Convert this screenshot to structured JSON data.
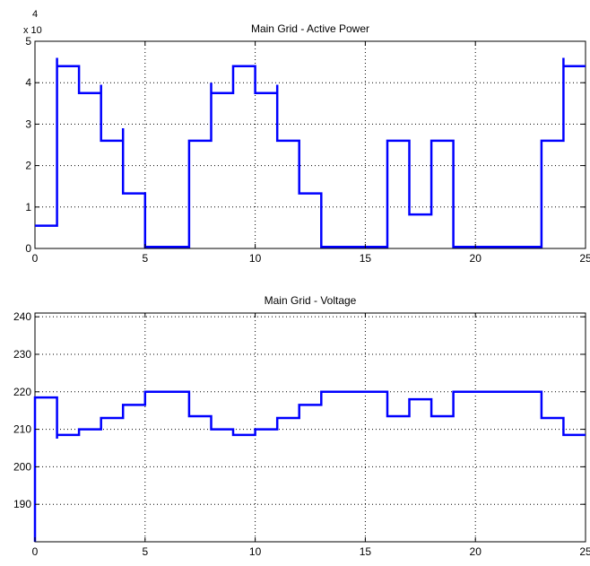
{
  "chart_data": [
    {
      "type": "line",
      "title": "Main Grid - Active Power",
      "xlabel": "",
      "ylabel": "",
      "xlim": [
        0,
        25
      ],
      "ylim": [
        0,
        50000
      ],
      "y_exponent_label": "x 10",
      "y_exponent_power": "4",
      "x_ticks": [
        "0",
        "5",
        "10",
        "15",
        "20",
        "25"
      ],
      "y_ticks": [
        "0",
        "1",
        "2",
        "3",
        "4",
        "5"
      ],
      "grid": true,
      "line_color": "#0000ff",
      "series": [
        {
          "x": [
            0,
            1,
            1,
            1,
            2,
            2,
            3,
            3,
            3,
            4,
            4,
            4,
            5,
            5,
            7,
            7,
            8,
            8,
            8,
            9,
            9,
            10,
            10,
            11,
            11,
            11,
            12,
            12,
            13,
            13,
            16,
            16,
            17,
            17,
            18,
            18,
            19,
            19,
            23,
            23,
            24,
            24,
            24,
            25
          ],
          "y": [
            5500,
            5500,
            46000,
            44000,
            44000,
            37500,
            37500,
            39500,
            26000,
            26000,
            29000,
            13300,
            13300,
            400,
            400,
            26000,
            26000,
            40000,
            37500,
            37500,
            44000,
            44000,
            37500,
            37500,
            39500,
            26000,
            26000,
            13300,
            13300,
            400,
            400,
            26000,
            26000,
            8200,
            8200,
            26000,
            26000,
            400,
            400,
            26000,
            26000,
            46000,
            44000,
            44000
          ]
        }
      ]
    },
    {
      "type": "line",
      "title": "Main Grid - Voltage",
      "xlabel": "",
      "ylabel": "",
      "xlim": [
        0,
        25
      ],
      "ylim": [
        180,
        241
      ],
      "x_ticks": [
        "0",
        "5",
        "10",
        "15",
        "20",
        "25"
      ],
      "y_ticks": [
        "190",
        "200",
        "210",
        "220",
        "230",
        "240"
      ],
      "grid": true,
      "line_color": "#0000ff",
      "series": [
        {
          "x": [
            0,
            0,
            0,
            1,
            1,
            1,
            2,
            2,
            3,
            3,
            4,
            4,
            5,
            5,
            7,
            7,
            8,
            8,
            9,
            9,
            10,
            10,
            11,
            11,
            12,
            12,
            13,
            13,
            16,
            16,
            17,
            17,
            18,
            18,
            19,
            19,
            23,
            23,
            24,
            24,
            25
          ],
          "y": [
            180,
            218.5,
            218.5,
            218.5,
            207.5,
            208.5,
            208.5,
            210,
            210,
            213,
            213,
            216.5,
            216.5,
            220,
            220,
            213.5,
            213.5,
            210,
            210,
            208.5,
            208.5,
            210,
            210,
            213,
            213,
            216.5,
            216.5,
            220,
            220,
            213.5,
            213.5,
            218,
            218,
            213.5,
            213.5,
            220,
            220,
            213,
            213,
            208.5,
            208.5
          ]
        }
      ]
    }
  ]
}
